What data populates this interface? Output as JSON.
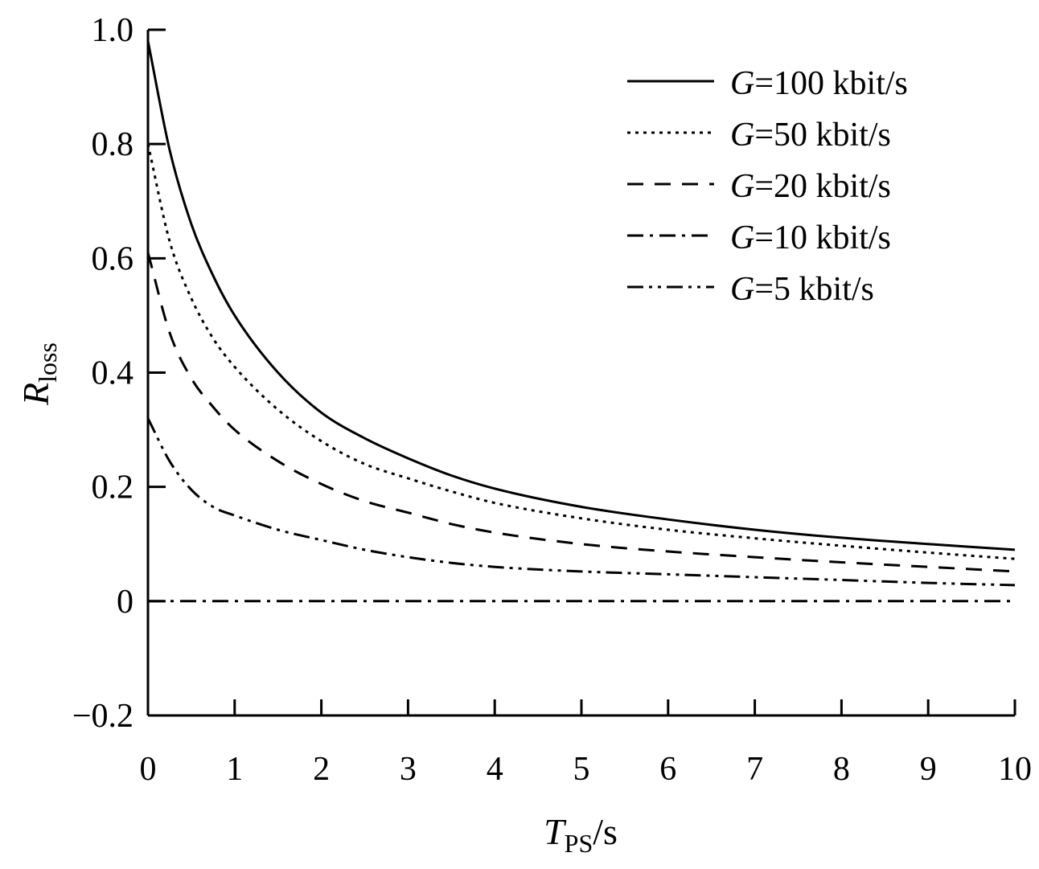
{
  "chart_data": {
    "type": "line",
    "xlabel": {
      "main": "T",
      "sub": "PS",
      "suffix": "/s"
    },
    "ylabel": {
      "main": "R",
      "sub": "loss"
    },
    "xlim": [
      0,
      10
    ],
    "ylim": [
      -0.2,
      1.0
    ],
    "x_ticks": [
      0,
      1,
      2,
      3,
      4,
      5,
      6,
      7,
      8,
      9,
      10
    ],
    "x_tick_labels": [
      "0",
      "1",
      "2",
      "3",
      "4",
      "5",
      "6",
      "7",
      "8",
      "9",
      "10"
    ],
    "y_ticks": [
      -0.2,
      0,
      0.2,
      0.4,
      0.6,
      0.8,
      1.0
    ],
    "y_tick_labels": [
      "−0.2",
      "0",
      "0.2",
      "0.4",
      "0.6",
      "0.8",
      "1.0"
    ],
    "grid": false,
    "legend_position": "top-right",
    "x": [
      0,
      0.25,
      0.5,
      0.75,
      1,
      1.5,
      2,
      2.5,
      3,
      3.5,
      4,
      5,
      6,
      7,
      8,
      9,
      10
    ],
    "series": [
      {
        "name_italic": "G",
        "name_rest": "=100 kbit/s",
        "dash": "solid",
        "values": [
          0.98,
          0.79,
          0.66,
          0.57,
          0.5,
          0.4,
          0.33,
          0.285,
          0.25,
          0.22,
          0.197,
          0.165,
          0.143,
          0.125,
          0.111,
          0.1,
          0.09
        ]
      },
      {
        "name_italic": "G",
        "name_rest": "=50 kbit/s",
        "dash": "dotted",
        "values": [
          0.8,
          0.63,
          0.53,
          0.46,
          0.41,
          0.335,
          0.28,
          0.24,
          0.215,
          0.192,
          0.172,
          0.145,
          0.125,
          0.11,
          0.097,
          0.085,
          0.074
        ]
      },
      {
        "name_italic": "G",
        "name_rest": "=20 kbit/s",
        "dash": "dashed",
        "values": [
          0.61,
          0.47,
          0.39,
          0.34,
          0.3,
          0.245,
          0.205,
          0.175,
          0.155,
          0.135,
          0.12,
          0.1,
          0.087,
          0.077,
          0.068,
          0.06,
          0.052
        ]
      },
      {
        "name_italic": "G",
        "name_rest": "=10 kbit/s",
        "dash": "dash-dot",
        "values": [
          0,
          0,
          0,
          0,
          0,
          0,
          0,
          0,
          0,
          0,
          0,
          0,
          0,
          0,
          0,
          0,
          0
        ]
      },
      {
        "name_italic": "G",
        "name_rest": "=5 kbit/s",
        "dash": "dash-dot-dot",
        "values": [
          0.32,
          0.245,
          0.195,
          0.165,
          0.15,
          0.125,
          0.107,
          0.09,
          0.077,
          0.067,
          0.06,
          0.052,
          0.047,
          0.042,
          0.037,
          0.032,
          0.028
        ]
      }
    ]
  }
}
